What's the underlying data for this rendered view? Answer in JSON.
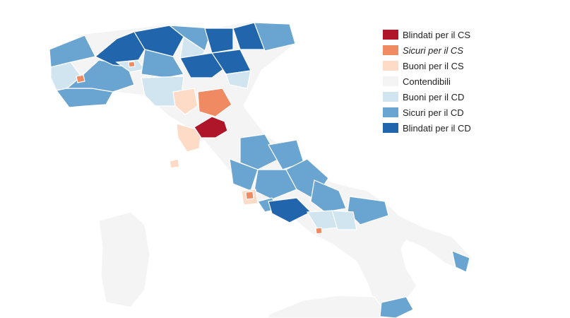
{
  "colors": {
    "blindati_cs": "#b0162a",
    "sicuri_cs": "#ef8a62",
    "buoni_cs": "#fddbc7",
    "contendibili": "#f4f4f4",
    "buoni_cd": "#d1e5f0",
    "sicuri_cd": "#6aa5d2",
    "blindati_cd": "#2166ac",
    "border": "#ffffff"
  },
  "legend": [
    {
      "label": "Blindati per il CS",
      "color": "#b0162a",
      "italic": false
    },
    {
      "label": "Sicuri per il CS",
      "color": "#ef8a62",
      "italic": true
    },
    {
      "label": "Buoni per il CS",
      "color": "#fddbc7",
      "italic": false
    },
    {
      "label": "Contendibili",
      "color": "#f4f4f4",
      "italic": false
    },
    {
      "label": "Buoni per il CD",
      "color": "#d1e5f0",
      "italic": false
    },
    {
      "label": "Sicuri per il CD",
      "color": "#6aa5d2",
      "italic": false
    },
    {
      "label": "Blindati per il CD",
      "color": "#2166ac",
      "italic": false
    }
  ]
}
